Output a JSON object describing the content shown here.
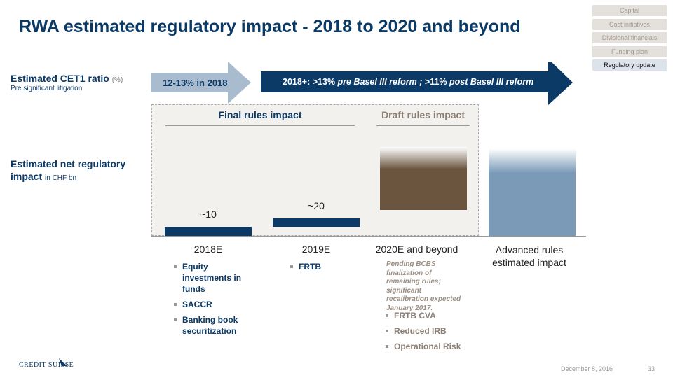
{
  "title": "RWA estimated regulatory impact - 2018 to 2020 and beyond",
  "nav": [
    {
      "label": "Capital"
    },
    {
      "label": "Cost initiatives"
    },
    {
      "label": "Divisional financials"
    },
    {
      "label": "Funding plan"
    },
    {
      "label": "Regulatory update",
      "active": true
    }
  ],
  "cet1": {
    "label": "Estimated CET1 ratio",
    "unit": "(%)",
    "sub": "Pre significant litigation",
    "arrow1": "12-13% in 2018",
    "arrow2_a": "2018+: >13% ",
    "arrow2_b": "pre Basel III reform ; ",
    "arrow2_c": ">11% ",
    "arrow2_d": "post Basel III reform"
  },
  "impact": {
    "label": "Estimated net regulatory",
    "label2": "impact",
    "unit": "in CHF bn"
  },
  "sections": {
    "final": "Final rules impact",
    "draft": "Draft rules impact"
  },
  "chart_data": {
    "type": "bar",
    "categories": [
      "2018E",
      "2019E",
      "2020E and beyond",
      "Advanced rules estimated impact"
    ],
    "values": [
      10,
      20,
      null,
      null
    ],
    "data_labels": [
      "~10",
      "~20",
      "",
      ""
    ],
    "colors": [
      "#0c3a66",
      "#0c3a66",
      "#6b553f",
      "#7a9ab8"
    ]
  },
  "cat4_line1": "Advanced rules",
  "cat4_line2": "estimated impact",
  "bullets": {
    "c1": [
      "Equity investments in funds",
      "SACCR",
      "Banking book securitization"
    ],
    "c2": [
      "FRTB"
    ],
    "c3_note": "Pending BCBS finalization of remaining rules; significant recalibration expected January 2017.",
    "c3": [
      "FRTB CVA",
      "Reduced IRB",
      "Operational Risk"
    ]
  },
  "footer": {
    "logo": "CREDIT SUISSE",
    "date": "December 8, 2016",
    "page": "33"
  }
}
